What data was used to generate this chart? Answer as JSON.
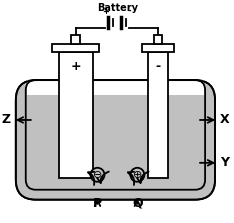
{
  "bg_color": "#ffffff",
  "tank_fill": "#c0c0c0",
  "electrode_fill": "#ffffff",
  "black": "#000000",
  "label_z": "Z",
  "label_x": "X",
  "label_y": "Y",
  "label_p": "P",
  "label_q": "Q",
  "label_battery": "Battery",
  "label_plus": "+",
  "label_minus": "-",
  "figw": 2.34,
  "figh": 2.23,
  "dpi": 100
}
